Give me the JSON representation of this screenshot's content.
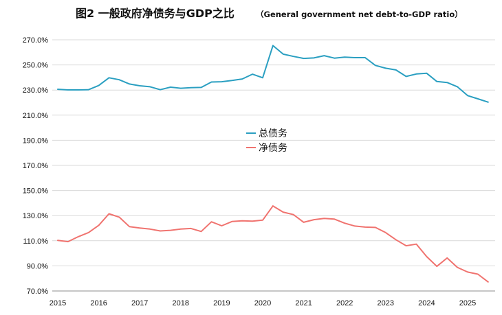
{
  "chart_data": {
    "type": "line",
    "title": "图2 一般政府净债务与GDP之比",
    "subtitle": "（General government net debt-to-GDP ratio）",
    "xlabel": "",
    "ylabel": "",
    "ylim": [
      70,
      270
    ],
    "yticks": [
      70,
      90,
      110,
      130,
      150,
      170,
      190,
      210,
      230,
      250,
      270
    ],
    "ytick_labels": [
      "70.0%",
      "90.0%",
      "110.0%",
      "130.0%",
      "150.0%",
      "170.0%",
      "190.0%",
      "210.0%",
      "230.0%",
      "250.0%",
      "270.0%"
    ],
    "xlim": [
      2015,
      2025.75
    ],
    "xticks": [
      "2015",
      "2016",
      "2017",
      "2018",
      "2019",
      "2020",
      "2021",
      "2022",
      "2023",
      "2024",
      "2025"
    ],
    "grid": "horizontal",
    "legend_position": "center",
    "x": [
      2015.0,
      2015.25,
      2015.5,
      2015.75,
      2016.0,
      2016.25,
      2016.5,
      2016.75,
      2017.0,
      2017.25,
      2017.5,
      2017.75,
      2018.0,
      2018.25,
      2018.5,
      2018.75,
      2019.0,
      2019.25,
      2019.5,
      2019.75,
      2020.0,
      2020.25,
      2020.5,
      2020.75,
      2021.0,
      2021.25,
      2021.5,
      2021.75,
      2022.0,
      2022.25,
      2022.5,
      2022.75,
      2023.0,
      2023.25,
      2023.5,
      2023.75,
      2024.0,
      2024.25,
      2024.5,
      2024.75,
      2025.0,
      2025.25,
      2025.5
    ],
    "series": [
      {
        "name": "总债务",
        "color": "#2a9fc1",
        "values": [
          230.6,
          230.1,
          230.1,
          230.3,
          233.6,
          239.8,
          238.2,
          234.8,
          233.4,
          232.6,
          230.3,
          232.3,
          231.4,
          231.9,
          232.1,
          236.4,
          236.6,
          237.6,
          238.8,
          242.6,
          239.8,
          265.4,
          258.6,
          256.8,
          255.2,
          255.6,
          257.4,
          255.4,
          256.2,
          255.8,
          255.8,
          249.6,
          247.4,
          246.0,
          240.8,
          242.8,
          243.4,
          236.8,
          236.0,
          232.6,
          225.6,
          223.0,
          220.4
        ]
      },
      {
        "name": "净债务",
        "color": "#f0736f",
        "values": [
          110.3,
          109.3,
          113.2,
          116.5,
          122.3,
          131.5,
          128.8,
          121.2,
          120.1,
          119.3,
          117.8,
          118.3,
          119.3,
          119.8,
          117.4,
          125.1,
          121.9,
          125.3,
          125.9,
          125.6,
          126.4,
          137.7,
          132.8,
          130.8,
          124.7,
          126.8,
          127.8,
          127.2,
          124.0,
          121.7,
          120.9,
          120.6,
          116.5,
          110.8,
          106.0,
          107.3,
          97.4,
          89.6,
          96.3,
          88.8,
          85.1,
          83.4,
          77.2
        ]
      }
    ]
  }
}
